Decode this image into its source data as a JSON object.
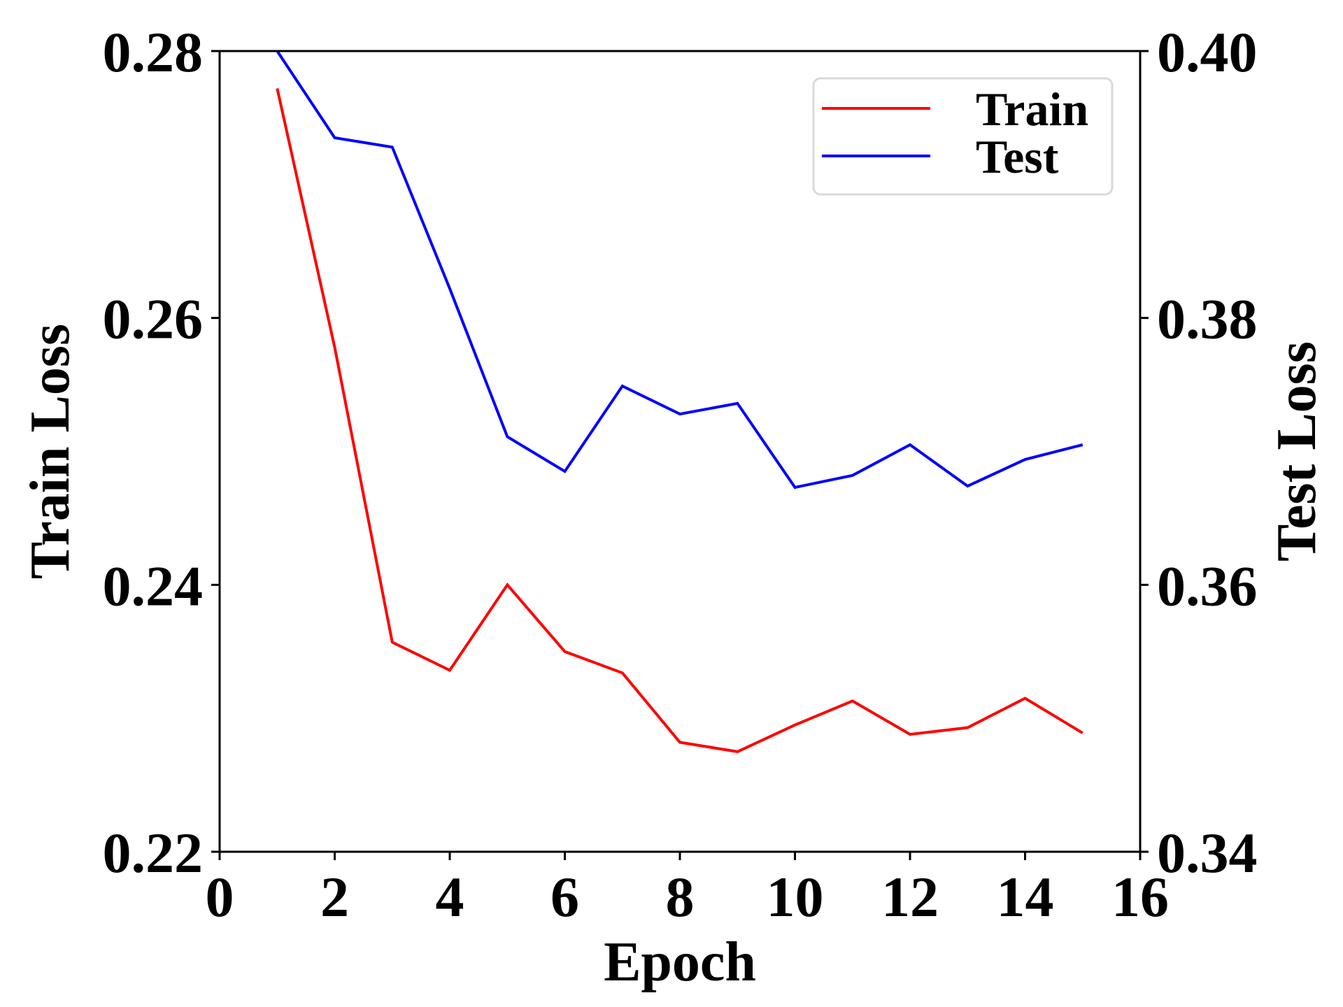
{
  "chart_data": {
    "type": "line",
    "title": "",
    "xlabel": "Epoch",
    "ylabel_left": "Train Loss",
    "ylabel_right": "Test Loss",
    "xlim": [
      0,
      16
    ],
    "ylim_left": [
      0.22,
      0.28
    ],
    "ylim_right": [
      0.34,
      0.4
    ],
    "xticks": [
      "0",
      "2",
      "4",
      "6",
      "8",
      "10",
      "12",
      "14",
      "16"
    ],
    "yticks_left": [
      "0.22",
      "0.24",
      "0.26",
      "0.28"
    ],
    "yticks_right": [
      "0.34",
      "0.36",
      "0.38",
      "0.40"
    ],
    "grid": false,
    "legend_position": "top-right",
    "x": [
      1,
      2,
      3,
      4,
      5,
      6,
      7,
      8,
      9,
      10,
      11,
      12,
      13,
      14,
      15
    ],
    "series": [
      {
        "name": "Train",
        "axis": "left",
        "color": "#ff0000",
        "values": [
          0.2772,
          0.2578,
          0.2357,
          0.2336,
          0.24,
          0.235,
          0.2334,
          0.2282,
          0.2275,
          0.2295,
          0.2313,
          0.2288,
          0.2293,
          0.2315,
          0.2289
        ]
      },
      {
        "name": "Test",
        "axis": "right",
        "color": "#0000ff",
        "values": [
          0.4,
          0.3935,
          0.3928,
          0.3822,
          0.3711,
          0.3685,
          0.3749,
          0.3728,
          0.3736,
          0.3673,
          0.3682,
          0.3705,
          0.3674,
          0.3694,
          0.3705
        ]
      }
    ]
  }
}
